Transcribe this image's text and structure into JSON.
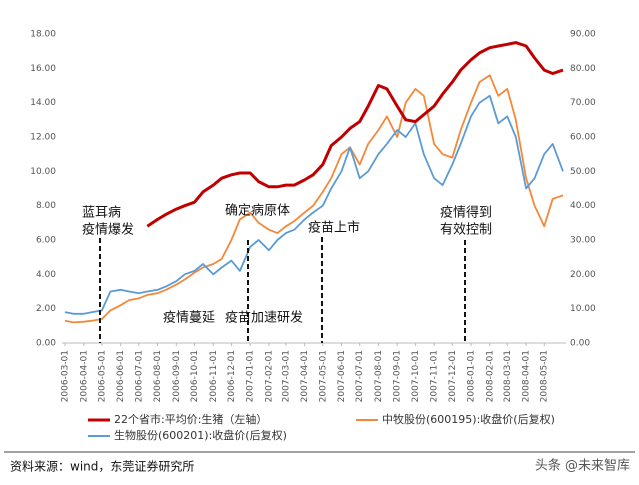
{
  "chart_data": {
    "type": "line",
    "x": [
      "2006-03-01",
      "2006-03-15",
      "2006-04-01",
      "2006-04-15",
      "2006-05-01",
      "2006-05-15",
      "2006-06-01",
      "2006-06-15",
      "2006-07-01",
      "2006-07-15",
      "2006-08-01",
      "2006-08-15",
      "2006-09-01",
      "2006-09-15",
      "2006-10-01",
      "2006-10-15",
      "2006-11-01",
      "2006-11-15",
      "2006-12-01",
      "2006-12-15",
      "2007-01-01",
      "2007-01-15",
      "2007-02-01",
      "2007-02-15",
      "2007-03-01",
      "2007-03-15",
      "2007-04-01",
      "2007-04-15",
      "2007-05-01",
      "2007-05-15",
      "2007-06-01",
      "2007-06-15",
      "2007-07-01",
      "2007-07-15",
      "2007-08-01",
      "2007-08-15",
      "2007-09-01",
      "2007-09-15",
      "2007-10-01",
      "2007-10-15",
      "2007-11-01",
      "2007-11-15",
      "2007-12-01",
      "2007-12-15",
      "2008-01-01",
      "2008-01-15",
      "2008-02-01",
      "2008-02-15",
      "2008-03-01",
      "2008-03-15",
      "2008-04-01",
      "2008-04-15",
      "2008-05-01",
      "2008-05-15",
      "2008-06-01"
    ],
    "xlim": [
      "2006-03-01",
      "2008-06-01"
    ],
    "xticks": [
      "2006-03-01",
      "2006-04-01",
      "2006-05-01",
      "2006-06-01",
      "2006-07-01",
      "2006-08-01",
      "2006-09-01",
      "2006-10-01",
      "2006-11-01",
      "2006-12-01",
      "2007-01-01",
      "2007-02-01",
      "2007-03-01",
      "2007-04-01",
      "2007-05-01",
      "2007-06-01",
      "2007-07-01",
      "2007-08-01",
      "2007-09-01",
      "2007-10-01",
      "2007-11-01",
      "2007-12-01",
      "2008-01-01",
      "2008-02-01",
      "2008-03-01",
      "2008-04-01",
      "2008-05-01"
    ],
    "ylim": [
      0,
      18
    ],
    "yticks": [
      {
        "value": 0,
        "label": "0.00"
      },
      {
        "value": 2,
        "label": "2.00"
      },
      {
        "value": 4,
        "label": "4.00"
      },
      {
        "value": 6,
        "label": "6.00"
      },
      {
        "value": 8,
        "label": "8.00"
      },
      {
        "value": 10,
        "label": "10.00"
      },
      {
        "value": 12,
        "label": "12.00"
      },
      {
        "value": 14,
        "label": "14.00"
      },
      {
        "value": 16,
        "label": "16.00"
      },
      {
        "value": 18,
        "label": "18.00"
      }
    ],
    "y2lim": [
      0,
      90
    ],
    "y2ticks": [
      {
        "value": 0,
        "label": "0.00"
      },
      {
        "value": 10,
        "label": "10.00"
      },
      {
        "value": 20,
        "label": "20.00"
      },
      {
        "value": 30,
        "label": "30.00"
      },
      {
        "value": 40,
        "label": "40.00"
      },
      {
        "value": 50,
        "label": "50.00"
      },
      {
        "value": 60,
        "label": "60.00"
      },
      {
        "value": 70,
        "label": "70.00"
      },
      {
        "value": 80,
        "label": "80.00"
      },
      {
        "value": 90,
        "label": "90.00"
      }
    ],
    "series": [
      {
        "name": "22个省市:平均价:生猪（左轴）",
        "color": "#c00000",
        "axis": "y",
        "values": [
          null,
          null,
          null,
          null,
          null,
          null,
          null,
          null,
          null,
          6.8,
          7.2,
          7.5,
          7.8,
          8.0,
          8.2,
          8.8,
          9.2,
          9.6,
          9.8,
          9.9,
          9.9,
          9.4,
          9.1,
          9.1,
          9.2,
          9.2,
          9.5,
          9.8,
          10.4,
          11.5,
          12.0,
          12.5,
          12.9,
          13.8,
          15.0,
          14.8,
          13.8,
          13.0,
          12.9,
          13.3,
          13.8,
          14.5,
          15.2,
          15.9,
          16.5,
          16.9,
          17.2,
          17.3,
          17.4,
          17.5,
          17.3,
          16.6,
          15.9,
          15.7,
          15.9
        ]
      },
      {
        "name": "中牧股份(600195):收盘价(后复权)",
        "color": "#f4883a",
        "axis": "y2",
        "values": [
          6.5,
          6.0,
          6.2,
          6.5,
          7.0,
          9.5,
          11.0,
          12.5,
          13.0,
          14.0,
          14.5,
          15.5,
          17.0,
          18.5,
          20.5,
          22.0,
          23.0,
          24.5,
          30.0,
          36.0,
          38.0,
          35.0,
          33.0,
          32.0,
          34.0,
          35.5,
          38.0,
          40.0,
          44.0,
          48.0,
          55.0,
          57.0,
          52.0,
          58.0,
          62.0,
          66.0,
          60.0,
          70.0,
          74.0,
          72.0,
          58.0,
          55.0,
          54.0,
          62.0,
          70.0,
          76.0,
          78.0,
          72.0,
          74.0,
          65.0,
          48.0,
          40.0,
          34.0,
          42.0,
          43.0
        ]
      },
      {
        "name": "生物股份(600201):收盘价(后复权)",
        "color": "#5b9bd5",
        "axis": "y2",
        "values": [
          9.0,
          8.5,
          8.5,
          9.0,
          9.5,
          15.0,
          15.5,
          15.0,
          14.5,
          15.0,
          15.5,
          16.5,
          18.0,
          20.0,
          21.0,
          23.0,
          20.0,
          22.0,
          24.0,
          21.0,
          28.0,
          30.0,
          27.0,
          30.0,
          32.0,
          33.0,
          36.0,
          38.0,
          40.0,
          45.0,
          50.0,
          57.0,
          48.0,
          50.0,
          55.0,
          58.0,
          62.0,
          60.0,
          64.0,
          55.0,
          48.0,
          46.0,
          52.0,
          58.0,
          66.0,
          70.0,
          72.0,
          64.0,
          66.0,
          60.0,
          45.0,
          48.0,
          55.0,
          58.0,
          50.0
        ]
      }
    ],
    "annotations": [
      [
        "蓝耳病",
        "疫情爆发"
      ],
      [
        "确定病原体"
      ],
      [
        "疫苗上市"
      ],
      [
        "疫情得到",
        "有效控制"
      ],
      [
        "疫情蔓延"
      ],
      [
        "疫苗加速研发"
      ]
    ],
    "grid": false,
    "legend": "bottom"
  },
  "footer": {
    "source": "资料来源：wind，东莞证券研究所",
    "watermark": "头条 @未来智库"
  }
}
